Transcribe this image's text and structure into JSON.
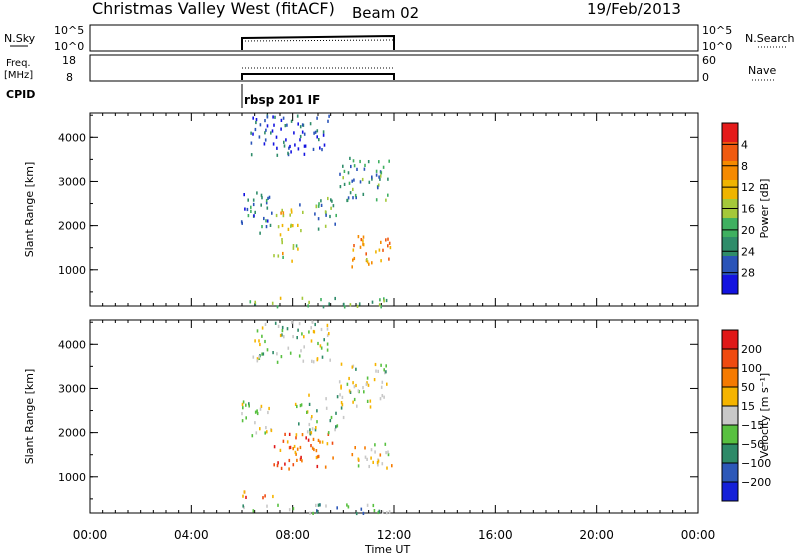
{
  "header": {
    "station": "Christmas Valley West (fitACF)",
    "beam": "Beam 02",
    "date": "19/Feb/2013"
  },
  "top_panels": {
    "nsky": {
      "left_label": "N.Sky",
      "left_ticks": [
        "10^5",
        "10^0"
      ],
      "right_ticks": [
        "10^5",
        "10^0"
      ],
      "right_label": "N.Search"
    },
    "freq": {
      "left_label_1": "Freq.",
      "left_label_2": "[MHz]",
      "left_ticks": [
        "18",
        "8"
      ],
      "right_ticks": [
        "60",
        "0"
      ],
      "right_label": "Nave"
    },
    "cpid": {
      "label": "CPID",
      "program": "rbsp 201 IF"
    }
  },
  "chart_data": [
    {
      "type": "heatmap",
      "name": "power",
      "ylabel": "Slant Range [km]",
      "xlabel": "",
      "xlim": [
        "00:00",
        "24:00"
      ],
      "ylim": [
        180,
        4550
      ],
      "yticks": [
        "1000",
        "2000",
        "3000",
        "4000"
      ],
      "colorbar": {
        "label": "Power [dB]",
        "ticks": [
          "4",
          "8",
          "12",
          "16",
          "20",
          "24",
          "28"
        ],
        "colors": [
          "#1313e0",
          "#2a54b8",
          "#2f8c6a",
          "#3fb060",
          "#a4c83a",
          "#f0b400",
          "#f58a00",
          "#f05a10",
          "#e51b1b"
        ]
      },
      "regions": [
        {
          "t0": 5.95,
          "t1": 7.15,
          "r0": 1850,
          "r1": 2800,
          "level": 0.25
        },
        {
          "t0": 7.2,
          "t1": 8.2,
          "r0": 1200,
          "r1": 2400,
          "level": 0.55
        },
        {
          "t0": 8.2,
          "t1": 9.8,
          "r0": 1900,
          "r1": 2800,
          "level": 0.35
        },
        {
          "t0": 9.8,
          "t1": 11.8,
          "r0": 2600,
          "r1": 3600,
          "level": 0.3
        },
        {
          "t0": 10.3,
          "t1": 11.9,
          "r0": 1100,
          "r1": 1800,
          "level": 0.7
        },
        {
          "t0": 6.3,
          "t1": 9.5,
          "r0": 3600,
          "r1": 4550,
          "level": 0.15
        },
        {
          "t0": 6.0,
          "t1": 11.9,
          "r0": 180,
          "r1": 400,
          "level": 0.4
        }
      ]
    },
    {
      "type": "heatmap",
      "name": "velocity",
      "ylabel": "Slant Range [km]",
      "xlabel": "Time UT",
      "xlim": [
        "00:00",
        "24:00"
      ],
      "xticks": [
        "00:00",
        "04:00",
        "08:00",
        "12:00",
        "16:00",
        "20:00",
        "00:00"
      ],
      "ylim": [
        180,
        4550
      ],
      "yticks": [
        "1000",
        "2000",
        "3000",
        "4000"
      ],
      "colorbar": {
        "label": "Velocity [m s⁻¹]",
        "ticks": [
          "200",
          "100",
          "50",
          "15",
          "−15",
          "−50",
          "−100",
          "−200"
        ],
        "colors": [
          "#1520d8",
          "#2d58b8",
          "#2e8a68",
          "#58c040",
          "#c8c8c8",
          "#f5b400",
          "#f57a00",
          "#f04a10",
          "#e01818"
        ]
      },
      "regions": [
        {
          "t0": 5.95,
          "t1": 7.15,
          "r0": 1850,
          "r1": 2800,
          "level": 0.5
        },
        {
          "t0": 7.2,
          "t1": 9.6,
          "r0": 1200,
          "r1": 2000,
          "level": 0.78
        },
        {
          "t0": 8.0,
          "t1": 10.0,
          "r0": 2000,
          "r1": 2900,
          "level": 0.45
        },
        {
          "t0": 9.8,
          "t1": 11.8,
          "r0": 2600,
          "r1": 3600,
          "level": 0.48
        },
        {
          "t0": 10.3,
          "t1": 11.9,
          "r0": 1100,
          "r1": 1800,
          "level": 0.6
        },
        {
          "t0": 6.3,
          "t1": 9.5,
          "r0": 3600,
          "r1": 4550,
          "level": 0.45
        },
        {
          "t0": 6.0,
          "t1": 7.5,
          "r0": 550,
          "r1": 700,
          "level": 0.75
        },
        {
          "t0": 6.0,
          "t1": 11.9,
          "r0": 180,
          "r1": 400,
          "level": 0.35
        }
      ]
    }
  ],
  "colors": {
    "nsky_line": "#000000",
    "freq_line": "#000000"
  }
}
